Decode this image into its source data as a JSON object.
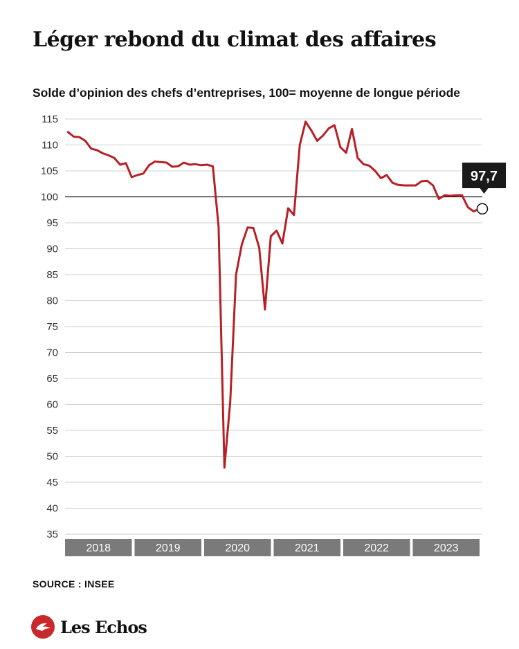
{
  "title": "Léger rebond du climat des affaires",
  "subtitle": "Solde d’opinion des chefs d’entreprises, 100= moyenne de longue période",
  "source": "SOURCE : INSEE",
  "brand": "Les Echos",
  "colors": {
    "line": "#b81f24",
    "reference": "#111111",
    "grid": "#cfcfcf",
    "year_band": "#7a7a7a",
    "callout_bg": "#1a1a1a"
  },
  "chart_data": {
    "type": "line",
    "title": "Léger rebond du climat des affaires",
    "subtitle": "Solde d’opinion des chefs d’entreprises, 100= moyenne de longue période",
    "xlabel": "",
    "ylabel": "",
    "ylim": [
      35,
      115
    ],
    "yticks": [
      115,
      110,
      105,
      100,
      95,
      90,
      85,
      80,
      75,
      70,
      65,
      60,
      55,
      50,
      45,
      40,
      35
    ],
    "ytick_labels": [
      "115",
      "110",
      "105",
      "100",
      "95",
      "90",
      "85",
      "80",
      "75",
      "70",
      "65",
      "60",
      "55",
      "50",
      "45",
      "40",
      "35"
    ],
    "years": [
      "2018",
      "2019",
      "2020",
      "2021",
      "2022",
      "2023"
    ],
    "grid": true,
    "reference_line": 100,
    "last_value_label": "97,7",
    "series": [
      {
        "frequency": "monthly",
        "start": "2018-01",
        "values": [
          112.5,
          111.6,
          111.5,
          110.8,
          109.3,
          109.0,
          108.4,
          108.0,
          107.5,
          106.2,
          106.5,
          103.8,
          104.2,
          104.5,
          106.1,
          106.8,
          106.7,
          106.6,
          105.8,
          105.9,
          106.6,
          106.2,
          106.3,
          106.1,
          106.2,
          105.9,
          94.2,
          47.8,
          60.5,
          85.0,
          90.8,
          94.1,
          94.0,
          90.2,
          78.3,
          92.4,
          93.5,
          91.0,
          97.8,
          96.5,
          110.0,
          114.5,
          112.8,
          110.8,
          111.8,
          113.2,
          113.8,
          109.6,
          108.5,
          113.1,
          107.5,
          106.3,
          106.0,
          105.0,
          103.6,
          104.2,
          102.7,
          102.3,
          102.2,
          102.2,
          102.2,
          103.0,
          103.1,
          102.2,
          99.6,
          100.3,
          100.2,
          100.3,
          100.3,
          98.0,
          97.2,
          97.7
        ]
      }
    ]
  }
}
